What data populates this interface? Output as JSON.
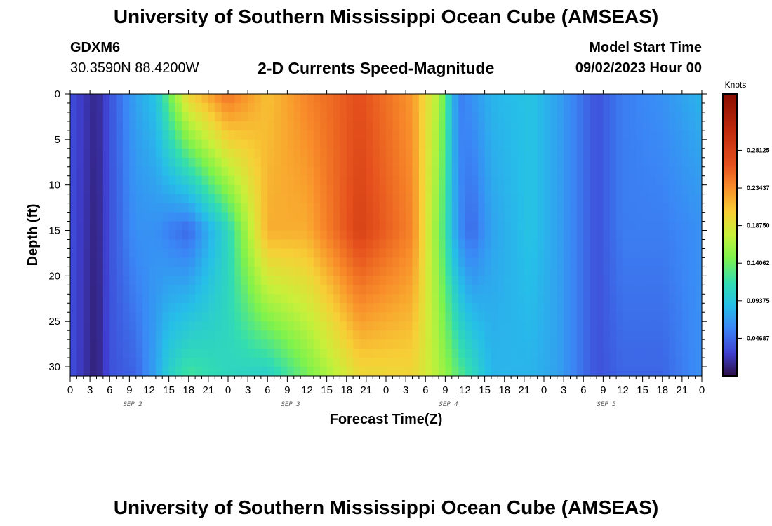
{
  "header": {
    "title": "University of Southern Mississippi Ocean Cube (AMSEAS)",
    "station": "GDXM6",
    "coords": "30.3590N  88.4200W",
    "subtitle": "2-D Currents Speed-Magnitude",
    "model_start_label": "Model Start Time",
    "model_start_value": "09/02/2023 Hour 00"
  },
  "footer": {
    "title": "University of Southern Mississippi Ocean Cube (AMSEAS)"
  },
  "chart_data": {
    "type": "heatmap",
    "title": "2-D Currents Speed-Magnitude",
    "xlabel": "Forecast Time(Z)",
    "ylabel": "Depth (ft)",
    "colorbar_label": "Knots",
    "xlim": [
      0,
      96
    ],
    "ylim": [
      31,
      0
    ],
    "x_tick_labels": [
      "0",
      "3",
      "6",
      "9",
      "12",
      "15",
      "18",
      "21",
      "0",
      "3",
      "6",
      "9",
      "12",
      "15",
      "18",
      "21",
      "0",
      "3",
      "6",
      "9",
      "12",
      "15",
      "18",
      "21",
      "0",
      "3",
      "6",
      "9",
      "12",
      "15",
      "18",
      "21",
      "0"
    ],
    "y_ticks": [
      0,
      5,
      10,
      15,
      20,
      25,
      30
    ],
    "day_labels": [
      "SEP 2",
      "SEP 3",
      "SEP 4",
      "SEP 5"
    ],
    "colorbar_ticks": [
      "0.04687",
      "0.09375",
      "0.14062",
      "0.18750",
      "0.23437",
      "0.28125"
    ],
    "colorbar_range": [
      0,
      0.3516
    ],
    "colors": [
      "#2b0f45",
      "#3f3fd0",
      "#3b86f6",
      "#26bfe8",
      "#33ddb0",
      "#7ff24c",
      "#c8f03a",
      "#f7cf36",
      "#f88c2a",
      "#e5501d",
      "#bf2a0b",
      "#8a0d02"
    ],
    "approx_speed_field_knots": {
      "note": "approximate magnitude by forecast hour (x) and depth in ft (rows)",
      "hours": [
        0,
        4,
        6,
        10,
        13,
        15,
        18,
        24,
        30,
        36,
        44,
        52,
        56,
        59,
        61,
        64,
        70,
        74,
        80,
        84,
        90,
        96
      ],
      "depth_0ft": [
        0.04,
        0.015,
        0.04,
        0.08,
        0.1,
        0.15,
        0.22,
        0.27,
        0.23,
        0.26,
        0.29,
        0.25,
        0.18,
        0.06,
        0.07,
        0.09,
        0.1,
        0.08,
        0.04,
        0.06,
        0.07,
        0.09
      ],
      "depth_15ft": [
        0.04,
        0.012,
        0.04,
        0.07,
        0.07,
        0.06,
        0.05,
        0.12,
        0.24,
        0.24,
        0.3,
        0.26,
        0.16,
        0.07,
        0.05,
        0.08,
        0.1,
        0.08,
        0.04,
        0.06,
        0.06,
        0.07
      ],
      "depth_30ft": [
        0.04,
        0.01,
        0.04,
        0.05,
        0.08,
        0.11,
        0.13,
        0.12,
        0.12,
        0.16,
        0.22,
        0.22,
        0.18,
        0.14,
        0.12,
        0.09,
        0.09,
        0.08,
        0.04,
        0.05,
        0.05,
        0.07
      ]
    }
  }
}
